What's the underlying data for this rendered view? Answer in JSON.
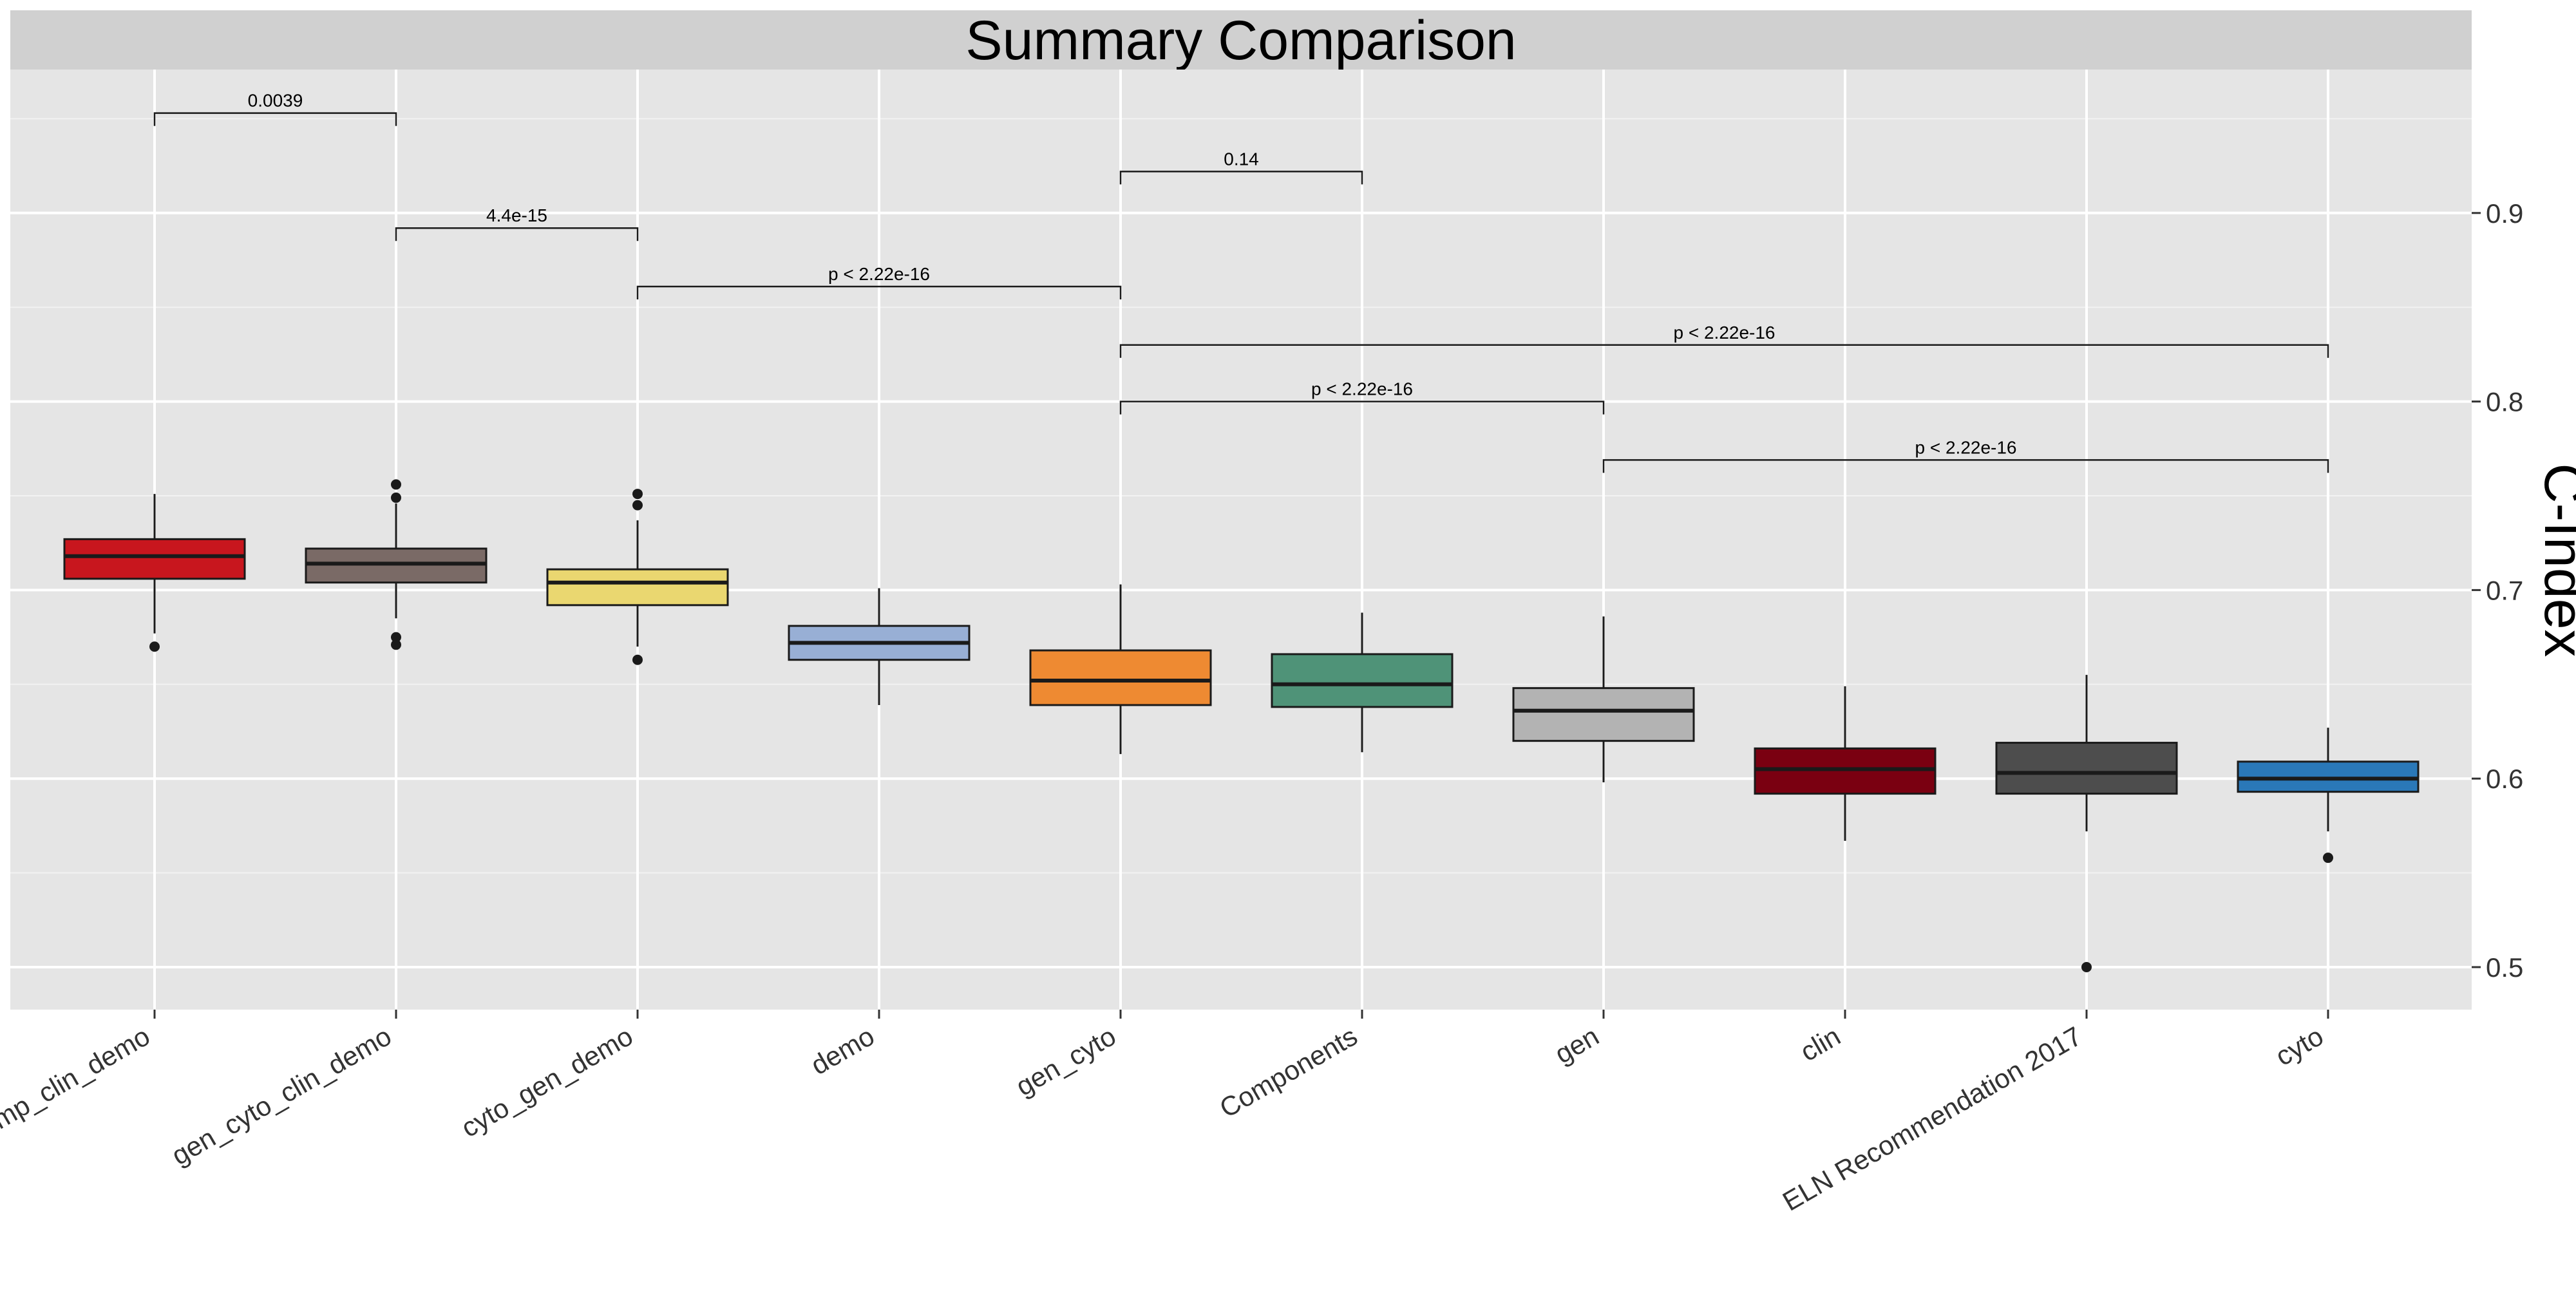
{
  "chart_data": {
    "type": "box",
    "title": "Summary Comparison",
    "ylabel": "C-Index",
    "xlabel": "",
    "ylim": [
      0.48,
      0.99
    ],
    "y_ticks": [
      0.5,
      0.6,
      0.7,
      0.8,
      0.9
    ],
    "y_tick_labels": [
      "0.5",
      "0.6",
      "0.7",
      "0.8",
      "0.9"
    ],
    "y_axis_position": "right",
    "grid": true,
    "categories": [
      "comp_clin_demo",
      "gen_cyto_clin_demo",
      "cyto_gen_demo",
      "demo",
      "gen_cyto",
      "Components",
      "gen",
      "clin",
      "ELN Recommendation 2017",
      "cyto"
    ],
    "boxes": [
      {
        "category": "comp_clin_demo",
        "lower_whisker": 0.677,
        "q1": 0.706,
        "median": 0.718,
        "q3": 0.727,
        "upper_whisker": 0.751,
        "outliers": [
          0.67
        ],
        "color": "#c8161e"
      },
      {
        "category": "gen_cyto_clin_demo",
        "lower_whisker": 0.685,
        "q1": 0.704,
        "median": 0.714,
        "q3": 0.722,
        "upper_whisker": 0.746,
        "outliers": [
          0.675,
          0.671,
          0.749,
          0.756
        ],
        "color": "#7a6a66"
      },
      {
        "category": "cyto_gen_demo",
        "lower_whisker": 0.67,
        "q1": 0.692,
        "median": 0.704,
        "q3": 0.711,
        "upper_whisker": 0.737,
        "outliers": [
          0.663,
          0.745,
          0.751
        ],
        "color": "#ead770"
      },
      {
        "category": "demo",
        "lower_whisker": 0.639,
        "q1": 0.663,
        "median": 0.672,
        "q3": 0.681,
        "upper_whisker": 0.701,
        "outliers": [],
        "color": "#98afd5"
      },
      {
        "category": "gen_cyto",
        "lower_whisker": 0.613,
        "q1": 0.639,
        "median": 0.652,
        "q3": 0.668,
        "upper_whisker": 0.703,
        "outliers": [],
        "color": "#ee8a32"
      },
      {
        "category": "Components",
        "lower_whisker": 0.614,
        "q1": 0.638,
        "median": 0.65,
        "q3": 0.666,
        "upper_whisker": 0.688,
        "outliers": [],
        "color": "#4f9378"
      },
      {
        "category": "gen",
        "lower_whisker": 0.598,
        "q1": 0.62,
        "median": 0.636,
        "q3": 0.648,
        "upper_whisker": 0.686,
        "outliers": [],
        "color": "#b3b3b3"
      },
      {
        "category": "clin",
        "lower_whisker": 0.567,
        "q1": 0.592,
        "median": 0.605,
        "q3": 0.616,
        "upper_whisker": 0.649,
        "outliers": [],
        "color": "#7a0011"
      },
      {
        "category": "ELN Recommendation 2017",
        "lower_whisker": 0.572,
        "q1": 0.592,
        "median": 0.603,
        "q3": 0.619,
        "upper_whisker": 0.655,
        "outliers": [
          0.5
        ],
        "color": "#4d4d4d"
      },
      {
        "category": "cyto",
        "lower_whisker": 0.572,
        "q1": 0.593,
        "median": 0.6,
        "q3": 0.609,
        "upper_whisker": 0.627,
        "outliers": [
          0.558
        ],
        "color": "#2a78b8"
      }
    ],
    "comparisons": [
      {
        "from": "comp_clin_demo",
        "to": "gen_cyto_clin_demo",
        "y": 0.953,
        "label": "0.0039"
      },
      {
        "from": "gen_cyto",
        "to": "Components",
        "y": 0.922,
        "label": "0.14"
      },
      {
        "from": "gen_cyto_clin_demo",
        "to": "cyto_gen_demo",
        "y": 0.892,
        "label": "4.4e-15"
      },
      {
        "from": "cyto_gen_demo",
        "to": "gen_cyto",
        "y": 0.861,
        "label": "p < 2.22e-16"
      },
      {
        "from": "gen_cyto",
        "to": "cyto",
        "y": 0.83,
        "label": "p < 2.22e-16"
      },
      {
        "from": "gen_cyto",
        "to": "gen",
        "y": 0.8,
        "label": "p < 2.22e-16"
      },
      {
        "from": "gen",
        "to": "cyto",
        "y": 0.769,
        "label": "p < 2.22e-16"
      }
    ]
  }
}
